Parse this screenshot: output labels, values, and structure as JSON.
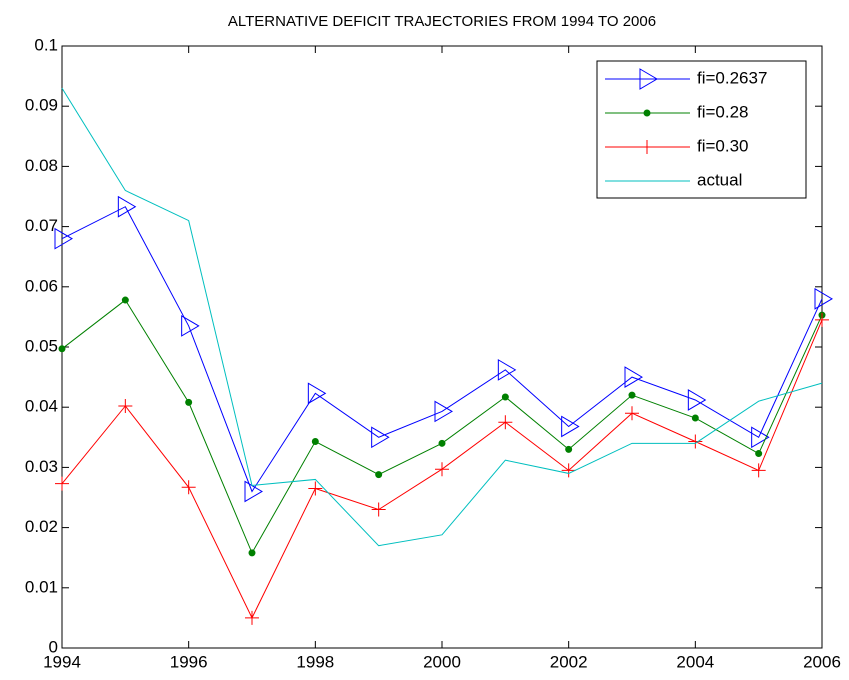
{
  "chart_data": {
    "type": "line",
    "title": "ALTERNATIVE DEFICIT TRAJECTORIES FROM 1994 TO 2006",
    "x": [
      1994,
      1995,
      1996,
      1997,
      1998,
      1999,
      2000,
      2001,
      2002,
      2003,
      2004,
      2005,
      2006
    ],
    "series": [
      {
        "name": "fi=0.2637",
        "color": "#0000ff",
        "marker": "triangle-right",
        "values": [
          0.068,
          0.0733,
          0.0535,
          0.026,
          0.0423,
          0.035,
          0.0393,
          0.0462,
          0.0368,
          0.045,
          0.0412,
          0.035,
          0.058
        ]
      },
      {
        "name": "fi=0.28",
        "color": "#008000",
        "marker": "dot",
        "values": [
          0.0497,
          0.0578,
          0.0408,
          0.0158,
          0.0343,
          0.0288,
          0.034,
          0.0417,
          0.033,
          0.042,
          0.0382,
          0.0323,
          0.0553
        ]
      },
      {
        "name": "fi=0.30",
        "color": "#ff0000",
        "marker": "plus",
        "values": [
          0.0273,
          0.0402,
          0.0267,
          0.005,
          0.0265,
          0.023,
          0.0297,
          0.0375,
          0.0295,
          0.039,
          0.0343,
          0.0295,
          0.0545
        ]
      },
      {
        "name": "actual",
        "color": "#00bfbf",
        "marker": "none",
        "values": [
          0.093,
          0.076,
          0.071,
          0.027,
          0.028,
          0.017,
          0.0188,
          0.0312,
          0.029,
          0.034,
          0.034,
          0.041,
          0.044
        ]
      }
    ],
    "xlim": [
      1994,
      2006
    ],
    "xticks": [
      1994,
      1996,
      1998,
      2000,
      2002,
      2004,
      2006
    ],
    "ylim": [
      0,
      0.1
    ],
    "yticks": [
      0,
      0.01,
      0.02,
      0.03,
      0.04,
      0.05,
      0.06,
      0.07,
      0.08,
      0.09,
      0.1
    ],
    "legend": "northeast"
  }
}
